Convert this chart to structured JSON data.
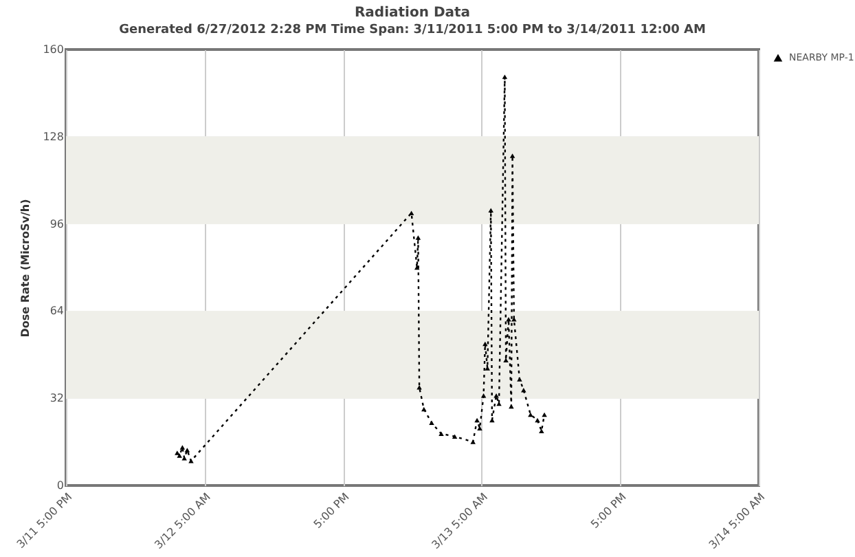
{
  "chart_data": {
    "type": "line",
    "title": "Radiation Data",
    "subtitle": "Generated 6/27/2012 2:28 PM   Time Span: 3/11/2011 5:00 PM to  3/14/2011 12:00 AM",
    "ylabel": "Dose Rate (MicroSv/h)",
    "x": [
      "2011-03-12T02:38",
      "2011-03-12T02:50",
      "2011-03-12T03:05",
      "2011-03-12T03:15",
      "2011-03-12T03:30",
      "2011-03-12T03:50",
      "2011-03-12T22:55",
      "2011-03-12T23:24",
      "2011-03-12T23:30",
      "2011-03-12T23:36",
      "2011-03-13T00:00",
      "2011-03-13T00:40",
      "2011-03-13T01:30",
      "2011-03-13T02:40",
      "2011-03-13T04:15",
      "2011-03-13T04:36",
      "2011-03-13T04:50",
      "2011-03-13T05:10",
      "2011-03-13T05:18",
      "2011-03-13T05:30",
      "2011-03-13T05:48",
      "2011-03-13T05:54",
      "2011-03-13T06:16",
      "2011-03-13T06:30",
      "2011-03-13T07:00",
      "2011-03-13T07:06",
      "2011-03-13T07:20",
      "2011-03-13T07:34",
      "2011-03-13T07:40",
      "2011-03-13T07:48",
      "2011-03-13T08:17",
      "2011-03-13T08:38",
      "2011-03-13T09:14",
      "2011-03-13T09:50",
      "2011-03-13T10:11",
      "2011-03-13T10:26"
    ],
    "series": [
      {
        "name": "NEARBY MP-1",
        "color": "#000000",
        "values": [
          12,
          11,
          14,
          10,
          13,
          9,
          100,
          80,
          91,
          36,
          28,
          23,
          19,
          18,
          16,
          24,
          21,
          33,
          52,
          43,
          101,
          24,
          33,
          30,
          150,
          46,
          61,
          29,
          121,
          61,
          39,
          35,
          26,
          24,
          20,
          26
        ]
      }
    ],
    "xlim": [
      "2011-03-11T17:00",
      "2011-03-14T05:00"
    ],
    "xticks": [
      {
        "value": "2011-03-11T17:00",
        "label": "3/11 5:00 PM"
      },
      {
        "value": "2011-03-12T05:00",
        "label": "3/12 5:00 AM"
      },
      {
        "value": "2011-03-12T17:00",
        "label": "5:00 PM"
      },
      {
        "value": "2011-03-13T05:00",
        "label": "3/13 5:00 AM"
      },
      {
        "value": "2011-03-13T17:00",
        "label": "5:00 PM"
      },
      {
        "value": "2011-03-14T05:00",
        "label": "3/14 5:00 AM"
      }
    ],
    "ylim": [
      0,
      160
    ],
    "yticks": [
      0,
      32,
      64,
      96,
      128,
      160
    ],
    "bands": [
      {
        "axis": "y",
        "from": 32,
        "to": 64,
        "color": "#efefe9"
      },
      {
        "axis": "y",
        "from": 96,
        "to": 128,
        "color": "#efefe9"
      }
    ],
    "grid": "x",
    "legend": "right",
    "marker": "triangle",
    "line_style": "dotted"
  }
}
